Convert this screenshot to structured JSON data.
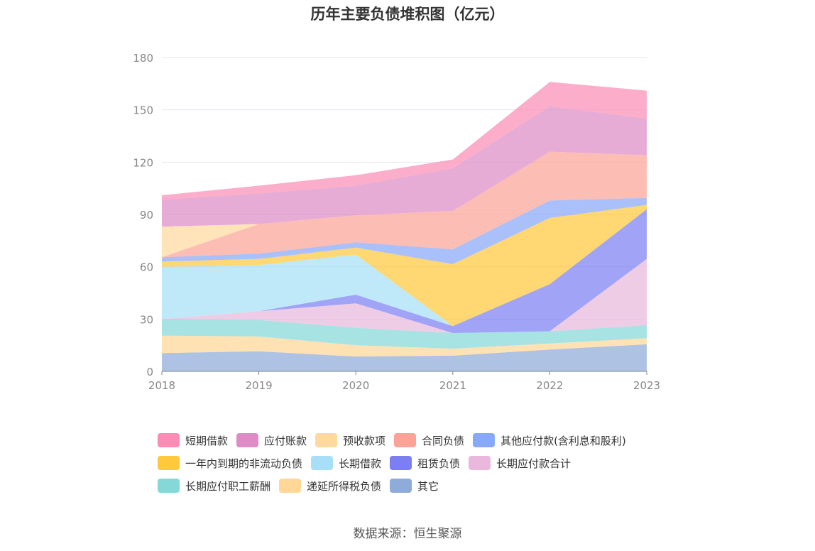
{
  "title": "历年主要负债堆积图（亿元）",
  "source": "数据来源：恒生聚源",
  "chart_data": {
    "type": "area",
    "stacked": true,
    "x": [
      "2018",
      "2019",
      "2020",
      "2021",
      "2022",
      "2023"
    ],
    "ylim": [
      0,
      180
    ],
    "yticks": [
      0,
      30,
      60,
      90,
      120,
      150,
      180
    ],
    "grid": true,
    "legend_position": "bottom",
    "series": [
      {
        "name": "其它",
        "color": "#8fabd9",
        "values": [
          10.5,
          11.5,
          8.5,
          9,
          12.5,
          15.5
        ]
      },
      {
        "name": "递延所得税负债",
        "color": "#ffd797",
        "values": [
          10,
          8.5,
          6.5,
          4,
          3.5,
          3.5
        ]
      },
      {
        "name": "长期应付职工薪酬",
        "color": "#86d8d8",
        "values": [
          9.5,
          9.5,
          10,
          9,
          7,
          7.5
        ]
      },
      {
        "name": "长期应付款合计",
        "color": "#e9b8dc",
        "values": [
          0,
          5,
          14,
          0,
          0,
          38
        ]
      },
      {
        "name": "租赁负债",
        "color": "#7c7ff2",
        "values": [
          0,
          0,
          5,
          4,
          27,
          28.5
        ]
      },
      {
        "name": "长期借款",
        "color": "#a6dff7",
        "values": [
          30,
          26.5,
          23,
          0,
          0,
          0
        ]
      },
      {
        "name": "一年内到期的非流动负债",
        "color": "#ffc83d",
        "values": [
          3,
          3.5,
          4,
          35.5,
          38,
          2.5
        ]
      },
      {
        "name": "其他应付款(含利息和股利)",
        "color": "#88a8f8",
        "values": [
          2.5,
          3,
          3,
          8.5,
          10,
          4
        ]
      },
      {
        "name": "合同负债",
        "color": "#fba398",
        "values": [
          0,
          17,
          15.5,
          22,
          28,
          24.5
        ]
      },
      {
        "name": "预收款项",
        "color": "#ffd9a0",
        "values": [
          17.5,
          0,
          0,
          0,
          0,
          0
        ]
      },
      {
        "name": "应付账款",
        "color": "#dd8cc5",
        "values": [
          15.5,
          17.5,
          17,
          24.5,
          26,
          21
        ]
      },
      {
        "name": "短期借款",
        "color": "#fb8db4",
        "values": [
          2.5,
          4.5,
          6,
          5,
          14,
          16
        ]
      }
    ]
  },
  "legend_rows": [
    [
      "短期借款",
      "应付账款",
      "预收款项",
      "合同负债",
      "其他应付款(含利息和股利)"
    ],
    [
      "一年内到期的非流动负债",
      "长期借款",
      "租赁负债",
      "长期应付款合计"
    ],
    [
      "长期应付职工薪酬",
      "递延所得税负债",
      "其它"
    ]
  ]
}
